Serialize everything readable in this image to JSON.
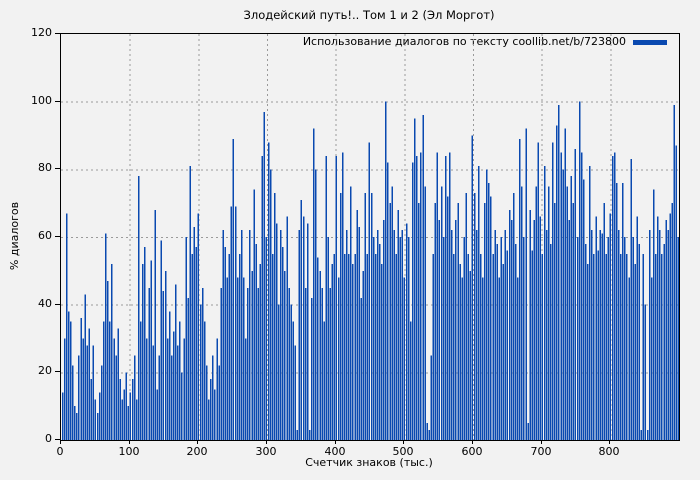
{
  "title": "Злодейский путь!.. Том 1 и 2 (Эл Моргот)",
  "legend": {
    "label": "Использование диалогов по тексту coollib.net/b/723800",
    "position": "top-right"
  },
  "chart_data": {
    "type": "bar",
    "style": "impulses",
    "title": "Злодейский путь!.. Том 1 и 2 (Эл Моргот)",
    "xlabel": "Счетчик знаков (тыс.)",
    "ylabel": "% диалогов",
    "xlim": [
      0,
      900
    ],
    "ylim": [
      0,
      120
    ],
    "x_ticks": [
      0,
      100,
      200,
      300,
      400,
      500,
      600,
      700,
      800
    ],
    "y_ticks": [
      0,
      20,
      40,
      60,
      80,
      100,
      120
    ],
    "grid": "dashed",
    "legend_position": "top-right",
    "colors": {
      "bar": "#0a49b0",
      "background": "#f2f2f2",
      "grid": "#9a9a9a",
      "axis": "#000000",
      "text": "#000000"
    },
    "x_start": 0,
    "x_step": 3,
    "series": [
      {
        "name": "Использование диалогов по тексту coollib.net/b/723800",
        "color": "#0a49b0",
        "values": [
          14,
          30,
          67,
          38,
          35,
          22,
          10,
          8,
          25,
          36,
          30,
          43,
          28,
          33,
          18,
          28,
          12,
          8,
          14,
          22,
          35,
          61,
          47,
          35,
          52,
          30,
          25,
          33,
          18,
          12,
          15,
          20,
          10,
          14,
          18,
          25,
          12,
          78,
          35,
          52,
          57,
          30,
          45,
          53,
          28,
          68,
          15,
          25,
          59,
          44,
          50,
          30,
          38,
          25,
          32,
          46,
          28,
          35,
          20,
          30,
          60,
          42,
          81,
          55,
          63,
          57,
          67,
          40,
          45,
          35,
          22,
          12,
          18,
          25,
          15,
          30,
          22,
          45,
          62,
          57,
          48,
          55,
          69,
          89,
          69,
          48,
          55,
          62,
          48,
          30,
          45,
          62,
          50,
          74,
          58,
          45,
          52,
          84,
          97,
          60,
          88,
          80,
          55,
          73,
          64,
          40,
          62,
          57,
          50,
          66,
          45,
          40,
          35,
          28,
          3,
          62,
          71,
          66,
          45,
          64,
          3,
          42,
          92,
          80,
          54,
          50,
          45,
          35,
          84,
          60,
          45,
          52,
          55,
          84,
          48,
          73,
          85,
          55,
          62,
          55,
          75,
          52,
          55,
          68,
          63,
          42,
          50,
          73,
          55,
          88,
          73,
          60,
          55,
          62,
          58,
          52,
          65,
          100,
          82,
          70,
          75,
          62,
          55,
          68,
          60,
          62,
          48,
          64,
          60,
          35,
          82,
          95,
          84,
          70,
          85,
          96,
          75,
          5,
          3,
          25,
          55,
          70,
          85,
          65,
          75,
          60,
          84,
          72,
          85,
          62,
          55,
          65,
          70,
          52,
          48,
          60,
          73,
          55,
          50,
          90,
          73,
          62,
          81,
          55,
          48,
          70,
          80,
          76,
          72,
          55,
          62,
          58,
          48,
          60,
          52,
          62,
          56,
          68,
          65,
          73,
          58,
          48,
          89,
          75,
          60,
          92,
          5,
          68,
          56,
          65,
          75,
          88,
          66,
          55,
          81,
          62,
          75,
          58,
          88,
          70,
          93,
          99,
          85,
          80,
          92,
          75,
          65,
          78,
          70,
          86,
          60,
          100,
          85,
          77,
          58,
          52,
          81,
          62,
          55,
          66,
          56,
          62,
          61,
          70,
          55,
          60,
          67,
          84,
          85,
          76,
          62,
          55,
          76,
          60,
          55,
          48,
          83,
          60,
          52,
          66,
          58,
          3,
          55,
          40,
          3,
          62,
          48,
          74,
          55,
          66,
          62,
          55,
          58,
          65,
          62,
          67,
          70,
          99,
          87,
          60
        ]
      }
    ]
  }
}
